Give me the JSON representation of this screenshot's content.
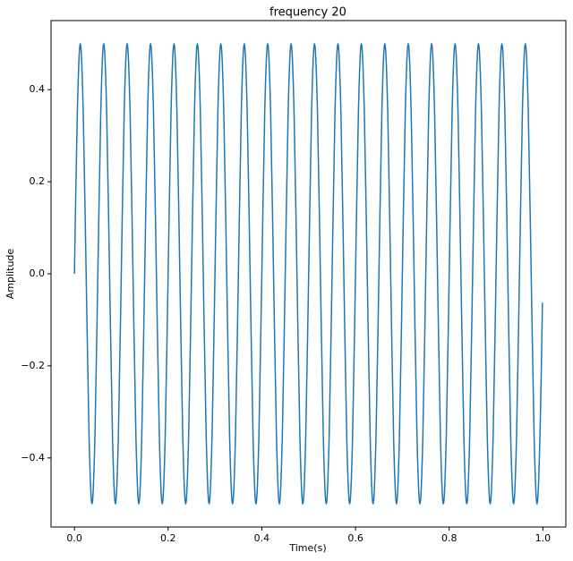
{
  "chart_data": {
    "type": "line",
    "title": "frequency 20",
    "xlabel": "Time(s)",
    "ylabel": "Amplitude",
    "xlim": [
      -0.04995,
      1.04895
    ],
    "ylim": [
      -0.55,
      0.55
    ],
    "xticks": [
      {
        "value": 0,
        "label": "0.0"
      },
      0.2,
      0.4,
      0.6,
      0.8,
      {
        "value": 1,
        "label": "1.0"
      }
    ],
    "yticks": [
      {
        "value": -0.4,
        "label": "−0.4"
      },
      {
        "value": -0.2,
        "label": "−0.2"
      },
      {
        "value": 0,
        "label": "0.0"
      },
      0.2,
      0.4
    ],
    "grid": false,
    "series": [
      {
        "color": "#1f77b4",
        "x": [
          0,
          0.00625,
          0.0125,
          0.01875,
          0.025,
          0.03125,
          0.0375,
          0.04375,
          0.05,
          0.05625,
          0.0625,
          0.06875,
          0.075,
          0.08125,
          0.0875,
          0.09375,
          0.1,
          0.10625,
          0.1125,
          0.11875,
          0.125,
          0.13125,
          0.1375,
          0.14375,
          0.15,
          0.15625,
          0.1625,
          0.16875,
          0.175,
          0.18125,
          0.1875,
          0.19375,
          0.2,
          0.20625,
          0.2125,
          0.21875,
          0.225,
          0.23125,
          0.2375,
          0.24375,
          0.25,
          0.25625,
          0.2625,
          0.26875,
          0.275,
          0.28125,
          0.2875,
          0.29375,
          0.3,
          0.30625,
          0.3125,
          0.31875,
          0.325,
          0.33125,
          0.3375,
          0.34375,
          0.35,
          0.35625,
          0.3625,
          0.36875,
          0.375,
          0.38125,
          0.3875,
          0.39375,
          0.4,
          0.40625,
          0.4125,
          0.41875,
          0.425,
          0.43125,
          0.4375,
          0.44375,
          0.45,
          0.45625,
          0.4625,
          0.46875,
          0.475,
          0.48125,
          0.4875,
          0.49375,
          0.5,
          0.50625,
          0.5125,
          0.51875,
          0.525,
          0.53125,
          0.5375,
          0.54375,
          0.55,
          0.55625,
          0.5625,
          0.56875,
          0.575,
          0.58125,
          0.5875,
          0.59375,
          0.6,
          0.60625,
          0.6125,
          0.61875,
          0.625,
          0.63125,
          0.6375,
          0.64375,
          0.65,
          0.65625,
          0.6625,
          0.66875,
          0.675,
          0.68125,
          0.6875,
          0.69375,
          0.7,
          0.70625,
          0.7125,
          0.71875,
          0.725,
          0.73125,
          0.7375,
          0.74375,
          0.75,
          0.75625,
          0.7625,
          0.76875,
          0.775,
          0.78125,
          0.7875,
          0.79375,
          0.8,
          0.80625,
          0.8125,
          0.81875,
          0.825,
          0.83125,
          0.8375,
          0.84375,
          0.85,
          0.85625,
          0.8625,
          0.86875,
          0.875,
          0.88125,
          0.8875,
          0.89375,
          0.9,
          0.90625,
          0.9125,
          0.91875,
          0.925,
          0.93125,
          0.9375,
          0.94375,
          0.95,
          0.95625,
          0.9625,
          0.96875,
          0.975,
          0.98125,
          0.9875,
          0.99375,
          0.999
        ],
        "values": [
          0,
          0.3536,
          0.5,
          0.3536,
          0,
          -0.3536,
          -0.5,
          -0.3536,
          0,
          0.3536,
          0.5,
          0.3536,
          0,
          -0.3536,
          -0.5,
          -0.3536,
          0,
          0.3536,
          0.5,
          0.3536,
          0,
          -0.3536,
          -0.5,
          -0.3536,
          0,
          0.3536,
          0.5,
          0.3536,
          0,
          -0.3536,
          -0.5,
          -0.3536,
          0,
          0.3536,
          0.5,
          0.3536,
          0,
          -0.3536,
          -0.5,
          -0.3536,
          0,
          0.3536,
          0.5,
          0.3536,
          0,
          -0.3536,
          -0.5,
          -0.3536,
          0,
          0.3536,
          0.5,
          0.3536,
          0,
          -0.3536,
          -0.5,
          -0.3536,
          0,
          0.3536,
          0.5,
          0.3536,
          0,
          -0.3536,
          -0.5,
          -0.3536,
          0,
          0.3536,
          0.5,
          0.3536,
          0,
          -0.3536,
          -0.5,
          -0.3536,
          0,
          0.3536,
          0.5,
          0.3536,
          0,
          -0.3536,
          -0.5,
          -0.3536,
          0,
          0.3536,
          0.5,
          0.3536,
          0,
          -0.3536,
          -0.5,
          -0.3536,
          0,
          0.3536,
          0.5,
          0.3536,
          0,
          -0.3536,
          -0.5,
          -0.3536,
          0,
          0.3536,
          0.5,
          0.3536,
          0,
          -0.3536,
          -0.5,
          -0.3536,
          0,
          0.3536,
          0.5,
          0.3536,
          0,
          -0.3536,
          -0.5,
          -0.3536,
          0,
          0.3536,
          0.5,
          0.3536,
          0,
          -0.3536,
          -0.5,
          -0.3536,
          0,
          0.3536,
          0.5,
          0.3536,
          0,
          -0.3536,
          -0.5,
          -0.3536,
          0,
          0.3536,
          0.5,
          0.3536,
          0,
          -0.3536,
          -0.5,
          -0.3536,
          0,
          0.3536,
          0.5,
          0.3536,
          0,
          -0.3536,
          -0.5,
          -0.3536,
          0,
          0.3536,
          0.5,
          0.3536,
          0,
          -0.3536,
          -0.5,
          -0.3536,
          0,
          0.3536,
          0.5,
          0.3536,
          0,
          -0.3536,
          -0.5,
          -0.3536,
          -0.0628
        ]
      }
    ]
  }
}
